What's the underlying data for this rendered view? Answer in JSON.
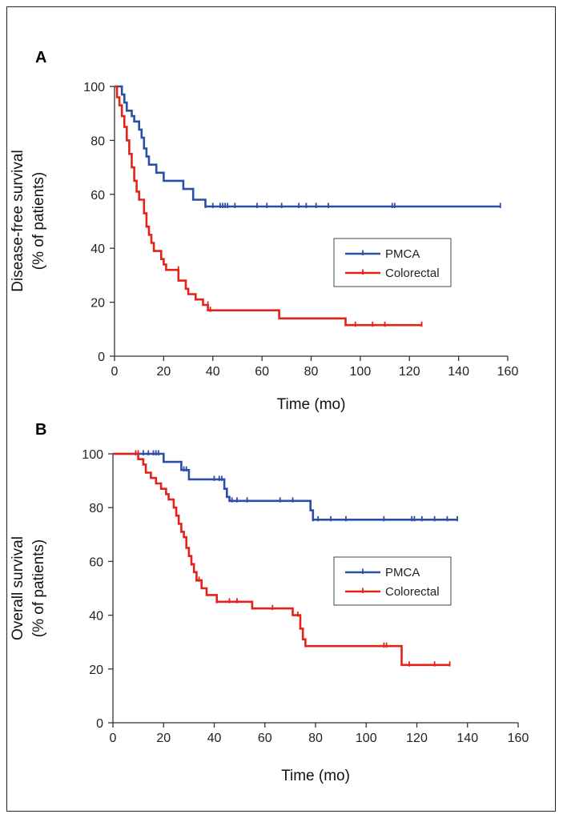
{
  "chart_data": [
    {
      "panel": "A",
      "type": "line",
      "step": true,
      "xlabel": "Time (mo)",
      "ylabel": [
        "Disease-free survival",
        "(% of patients)"
      ],
      "xlim": [
        0,
        160
      ],
      "ylim": [
        0,
        100
      ],
      "xticks": [
        0,
        20,
        40,
        60,
        80,
        100,
        120,
        140,
        160
      ],
      "yticks": [
        0,
        20,
        40,
        60,
        80,
        100
      ],
      "grid": false,
      "legend_position": "center-right",
      "series": [
        {
          "name": "PMCA",
          "color": "#2b4ea8",
          "points": [
            [
              0,
              100
            ],
            [
              3,
              100
            ],
            [
              3,
              97
            ],
            [
              4,
              97
            ],
            [
              4,
              94
            ],
            [
              5,
              94
            ],
            [
              5,
              91
            ],
            [
              7,
              91
            ],
            [
              7,
              89
            ],
            [
              8,
              89
            ],
            [
              8,
              87
            ],
            [
              10,
              87
            ],
            [
              10,
              84
            ],
            [
              11,
              84
            ],
            [
              11,
              81
            ],
            [
              12,
              81
            ],
            [
              12,
              77
            ],
            [
              13,
              77
            ],
            [
              13,
              74
            ],
            [
              14,
              74
            ],
            [
              14,
              71
            ],
            [
              17,
              71
            ],
            [
              17,
              68
            ],
            [
              20,
              68
            ],
            [
              20,
              65
            ],
            [
              28,
              65
            ],
            [
              28,
              62
            ],
            [
              32,
              62
            ],
            [
              32,
              58
            ],
            [
              37,
              58
            ],
            [
              37,
              55.5
            ],
            [
              157,
              55.5
            ]
          ],
          "censored": [
            [
              37,
              55.5
            ],
            [
              40,
              55.5
            ],
            [
              43,
              55.5
            ],
            [
              44,
              55.5
            ],
            [
              45,
              55.5
            ],
            [
              46,
              55.5
            ],
            [
              49,
              55.5
            ],
            [
              58,
              55.5
            ],
            [
              62,
              55.5
            ],
            [
              68,
              55.5
            ],
            [
              75,
              55.5
            ],
            [
              78,
              55.5
            ],
            [
              82,
              55.5
            ],
            [
              87,
              55.5
            ],
            [
              113,
              55.5
            ],
            [
              114,
              55.5
            ],
            [
              157,
              55.5
            ]
          ]
        },
        {
          "name": "Colorectal",
          "color": "#e32219",
          "points": [
            [
              0,
              100
            ],
            [
              1,
              100
            ],
            [
              1,
              96
            ],
            [
              2,
              96
            ],
            [
              2,
              93
            ],
            [
              3,
              93
            ],
            [
              3,
              89
            ],
            [
              4,
              89
            ],
            [
              4,
              85
            ],
            [
              5,
              85
            ],
            [
              5,
              80
            ],
            [
              6,
              80
            ],
            [
              6,
              75
            ],
            [
              7,
              75
            ],
            [
              7,
              70
            ],
            [
              8,
              70
            ],
            [
              8,
              65
            ],
            [
              9,
              65
            ],
            [
              9,
              61
            ],
            [
              10,
              61
            ],
            [
              10,
              58
            ],
            [
              12,
              58
            ],
            [
              12,
              53
            ],
            [
              13,
              53
            ],
            [
              13,
              48
            ],
            [
              14,
              48
            ],
            [
              14,
              45
            ],
            [
              15,
              45
            ],
            [
              15,
              42
            ],
            [
              16,
              42
            ],
            [
              16,
              39
            ],
            [
              19,
              39
            ],
            [
              19,
              36
            ],
            [
              20,
              36
            ],
            [
              20,
              34
            ],
            [
              21,
              34
            ],
            [
              21,
              32
            ],
            [
              26,
              32
            ],
            [
              26,
              28
            ],
            [
              29,
              28
            ],
            [
              29,
              25
            ],
            [
              30,
              25
            ],
            [
              30,
              23
            ],
            [
              33,
              23
            ],
            [
              33,
              21
            ],
            [
              36,
              21
            ],
            [
              36,
              19
            ],
            [
              38,
              19
            ],
            [
              38,
              17
            ],
            [
              67,
              17
            ],
            [
              67,
              14
            ],
            [
              94,
              14
            ],
            [
              94,
              11.5
            ],
            [
              125,
              11.5
            ]
          ],
          "censored": [
            [
              26,
              32
            ],
            [
              38,
              19
            ],
            [
              39,
              17
            ],
            [
              98,
              11.5
            ],
            [
              105,
              11.5
            ],
            [
              110,
              11.5
            ],
            [
              125,
              11.5
            ]
          ]
        }
      ]
    },
    {
      "panel": "B",
      "type": "line",
      "step": true,
      "xlabel": "Time (mo)",
      "ylabel": [
        "Overall survival",
        "(% of patients)"
      ],
      "xlim": [
        0,
        160
      ],
      "ylim": [
        0,
        100
      ],
      "xticks": [
        0,
        20,
        40,
        60,
        80,
        100,
        120,
        140,
        160
      ],
      "yticks": [
        0,
        20,
        40,
        60,
        80,
        100
      ],
      "grid": false,
      "legend_position": "center-right",
      "series": [
        {
          "name": "PMCA",
          "color": "#2b4ea8",
          "points": [
            [
              0,
              100
            ],
            [
              20,
              100
            ],
            [
              20,
              97
            ],
            [
              27,
              97
            ],
            [
              27,
              94
            ],
            [
              30,
              94
            ],
            [
              30,
              90.5
            ],
            [
              44,
              90.5
            ],
            [
              44,
              87
            ],
            [
              45,
              87
            ],
            [
              45,
              84
            ],
            [
              46,
              84
            ],
            [
              46,
              82.5
            ],
            [
              78,
              82.5
            ],
            [
              78,
              79
            ],
            [
              79,
              79
            ],
            [
              79,
              75.5
            ],
            [
              136,
              75.5
            ]
          ],
          "censored": [
            [
              12,
              100
            ],
            [
              14,
              100
            ],
            [
              16,
              100
            ],
            [
              17,
              100
            ],
            [
              18,
              100
            ],
            [
              28,
              94
            ],
            [
              29,
              94
            ],
            [
              40,
              90.5
            ],
            [
              42,
              90.5
            ],
            [
              43,
              90.5
            ],
            [
              47,
              82.5
            ],
            [
              49,
              82.5
            ],
            [
              53,
              82.5
            ],
            [
              66,
              82.5
            ],
            [
              71,
              82.5
            ],
            [
              79,
              75.5
            ],
            [
              81,
              75.5
            ],
            [
              86,
              75.5
            ],
            [
              92,
              75.5
            ],
            [
              107,
              75.5
            ],
            [
              118,
              75.5
            ],
            [
              119,
              75.5
            ],
            [
              122,
              75.5
            ],
            [
              127,
              75.5
            ],
            [
              132,
              75.5
            ],
            [
              136,
              75.5
            ]
          ]
        },
        {
          "name": "Colorectal",
          "color": "#e32219",
          "points": [
            [
              0,
              100
            ],
            [
              10,
              100
            ],
            [
              10,
              98
            ],
            [
              12,
              98
            ],
            [
              12,
              96
            ],
            [
              13,
              96
            ],
            [
              13,
              93
            ],
            [
              15,
              93
            ],
            [
              15,
              91
            ],
            [
              17,
              91
            ],
            [
              17,
              89
            ],
            [
              19,
              89
            ],
            [
              19,
              87
            ],
            [
              21,
              87
            ],
            [
              21,
              85
            ],
            [
              22,
              85
            ],
            [
              22,
              83
            ],
            [
              24,
              83
            ],
            [
              24,
              80
            ],
            [
              25,
              80
            ],
            [
              25,
              77
            ],
            [
              26,
              77
            ],
            [
              26,
              74
            ],
            [
              27,
              74
            ],
            [
              27,
              71
            ],
            [
              28,
              71
            ],
            [
              28,
              69
            ],
            [
              29,
              69
            ],
            [
              29,
              65
            ],
            [
              30,
              65
            ],
            [
              30,
              62
            ],
            [
              31,
              62
            ],
            [
              31,
              59
            ],
            [
              32,
              59
            ],
            [
              32,
              56
            ],
            [
              33,
              56
            ],
            [
              33,
              53
            ],
            [
              35,
              53
            ],
            [
              35,
              50
            ],
            [
              37,
              50
            ],
            [
              37,
              47.5
            ],
            [
              41,
              47.5
            ],
            [
              41,
              45
            ],
            [
              55,
              45
            ],
            [
              55,
              42.5
            ],
            [
              71,
              42.5
            ],
            [
              71,
              40
            ],
            [
              74,
              40
            ],
            [
              74,
              35
            ],
            [
              75,
              35
            ],
            [
              75,
              31
            ],
            [
              76,
              31
            ],
            [
              76,
              28.5
            ],
            [
              114,
              28.5
            ],
            [
              114,
              21.5
            ],
            [
              133,
              21.5
            ]
          ],
          "censored": [
            [
              9,
              100
            ],
            [
              10,
              100
            ],
            [
              31,
              59
            ],
            [
              33,
              53
            ],
            [
              34,
              53
            ],
            [
              41,
              45
            ],
            [
              46,
              45
            ],
            [
              49,
              45
            ],
            [
              63,
              42.5
            ],
            [
              73,
              40
            ],
            [
              107,
              28.5
            ],
            [
              108,
              28.5
            ],
            [
              117,
              21.5
            ],
            [
              127,
              21.5
            ],
            [
              133,
              21.5
            ]
          ]
        }
      ]
    }
  ]
}
